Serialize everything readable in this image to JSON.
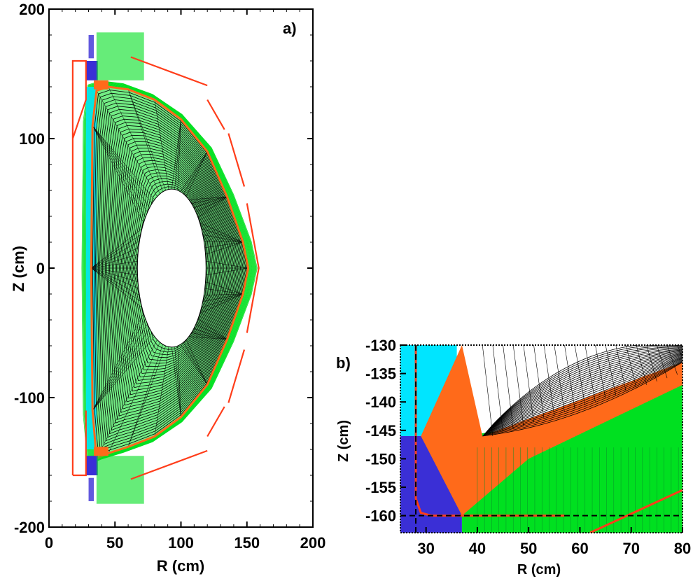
{
  "colors": {
    "core_mesh": "#000000",
    "sol_mesh": "#00e020",
    "pfr_mesh": "#ff6a1a",
    "inner_sol_mesh": "#00e5ff",
    "private_mesh": "#3a2fd6",
    "wall": "#ff3d1a",
    "dashed_ref": "#000000"
  },
  "chart_data": [
    {
      "panel": "a)",
      "type": "scatter",
      "xlabel": "R (cm)",
      "ylabel": "Z (cm)",
      "xlim": [
        0,
        200
      ],
      "ylim": [
        -200,
        200
      ],
      "xticks": [
        "0",
        "50",
        "100",
        "150",
        "200"
      ],
      "yticks": [
        "200",
        "100",
        "0",
        "-100",
        "-200"
      ],
      "xtick_values": [
        0,
        50,
        100,
        150,
        200
      ],
      "ytick_values": [
        200,
        100,
        0,
        -100,
        -200
      ],
      "separatrix": {
        "r": [
          36,
          45,
          60,
          80,
          100,
          120,
          135,
          147,
          151,
          147,
          135,
          120,
          100,
          80,
          60,
          45,
          36,
          33,
          32,
          33,
          36
        ],
        "z": [
          137,
          140,
          138,
          130,
          115,
          90,
          55,
          20,
          0,
          -20,
          -55,
          -90,
          -115,
          -130,
          -138,
          -143,
          -147,
          -110,
          0,
          110,
          137
        ]
      },
      "central_hole": {
        "r_center": 93,
        "z_center": 0,
        "r_half_width": 26,
        "z_half_height": 61
      },
      "wall_segments": [
        {
          "r": [
            18,
            28,
            28,
            18,
            18
          ],
          "z": [
            100,
            130,
            160,
            160,
            -160
          ]
        },
        {
          "r": [
            18,
            28,
            28
          ],
          "z": [
            -160,
            -160,
            -110
          ]
        },
        {
          "r": [
            62,
            120
          ],
          "z": [
            163,
            141
          ]
        },
        {
          "r": [
            120,
            133
          ],
          "z": [
            130,
            107
          ]
        },
        {
          "r": [
            136,
            148
          ],
          "z": [
            104,
            63
          ]
        },
        {
          "r": [
            150,
            159,
            159,
            150
          ],
          "z": [
            50,
            0,
            0,
            -50
          ]
        },
        {
          "r": [
            148,
            136
          ],
          "z": [
            -63,
            -104
          ]
        },
        {
          "r": [
            133,
            120
          ],
          "z": [
            -107,
            -130
          ]
        },
        {
          "r": [
            120,
            62
          ],
          "z": [
            -141,
            -163
          ]
        }
      ]
    },
    {
      "panel": "b)",
      "type": "scatter",
      "xlabel": "R (cm)",
      "ylabel": "Z (cm)",
      "xlim": [
        25,
        80
      ],
      "ylim": [
        -163,
        -130
      ],
      "xticks": [
        "30",
        "40",
        "50",
        "60",
        "70",
        "80"
      ],
      "yticks": [
        "-130",
        "-135",
        "-140",
        "-145",
        "-150",
        "-155",
        "-160"
      ],
      "xtick_values": [
        30,
        40,
        50,
        60,
        70,
        80
      ],
      "ytick_values": [
        -130,
        -135,
        -140,
        -145,
        -150,
        -155,
        -160
      ],
      "dashed_lines": {
        "vertical_r": 28,
        "horizontal_z": -160
      },
      "wall_segments": [
        {
          "r": [
            28,
            28,
            29,
            31,
            57
          ],
          "z": [
            -130,
            -157,
            -159.5,
            -160,
            -160
          ]
        },
        {
          "r": [
            62,
            80
          ],
          "z": [
            -163,
            -155.5
          ]
        }
      ]
    }
  ]
}
